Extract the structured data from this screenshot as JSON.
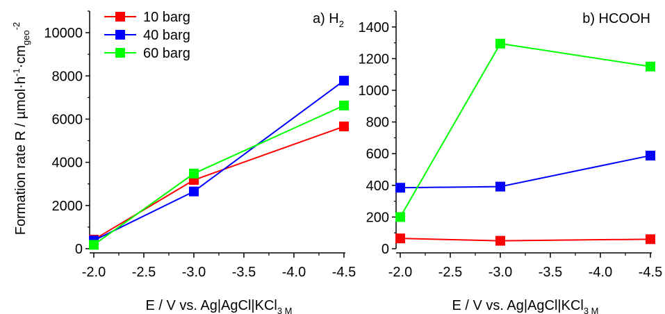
{
  "ylabel": {
    "main": "Formation rate R / µmol·h",
    "sup1": "-1",
    "mid": "·cm",
    "sub": "geo",
    "sup2": "-2"
  },
  "legend": [
    {
      "label": "10 barg",
      "color": "#ff0000"
    },
    {
      "label": "40 barg",
      "color": "#0000ff"
    },
    {
      "label": "60 barg",
      "color": "#00ff00"
    }
  ],
  "chart_data": [
    {
      "type": "line",
      "title": "a) H",
      "title_sub": "2",
      "xlabel": "E / V vs. Ag|AgCl|KCl",
      "xlabel_sub": "3 M",
      "x": [
        -2.0,
        -3.0,
        -4.5
      ],
      "xlim": [
        -2.0,
        -4.5
      ],
      "xticks": [
        "-2.0",
        "-2.5",
        "-3.0",
        "-3.5",
        "-4.0",
        "-4.5"
      ],
      "ylim": [
        0,
        11000
      ],
      "yticks": [
        "0",
        "2000",
        "4000",
        "6000",
        "8000",
        "10000"
      ],
      "grid": false,
      "legend_position": "top-left",
      "series": [
        {
          "name": "10 barg",
          "color": "#ff0000",
          "values": [
            420,
            3180,
            5660
          ]
        },
        {
          "name": "40 barg",
          "color": "#0000ff",
          "values": [
            380,
            2650,
            7780
          ]
        },
        {
          "name": "60 barg",
          "color": "#00ff00",
          "values": [
            180,
            3480,
            6630
          ]
        }
      ]
    },
    {
      "type": "line",
      "title": "b) HCOOH",
      "xlabel": "E / V vs. Ag|AgCl|KCl",
      "xlabel_sub": "3 M",
      "x": [
        -2.0,
        -3.0,
        -4.5
      ],
      "xlim": [
        -2.0,
        -4.5
      ],
      "xticks": [
        "-2.0",
        "-2.5",
        "-3.0",
        "-3.5",
        "-4.0",
        "-4.5"
      ],
      "ylim": [
        0,
        1500
      ],
      "yticks": [
        "0",
        "200",
        "400",
        "600",
        "800",
        "1000",
        "1200",
        "1400"
      ],
      "grid": false,
      "series": [
        {
          "name": "10 barg",
          "color": "#ff0000",
          "values": [
            65,
            50,
            60
          ]
        },
        {
          "name": "40 barg",
          "color": "#0000ff",
          "values": [
            385,
            392,
            588
          ]
        },
        {
          "name": "60 barg",
          "color": "#00ff00",
          "values": [
            200,
            1295,
            1150
          ]
        }
      ]
    }
  ]
}
